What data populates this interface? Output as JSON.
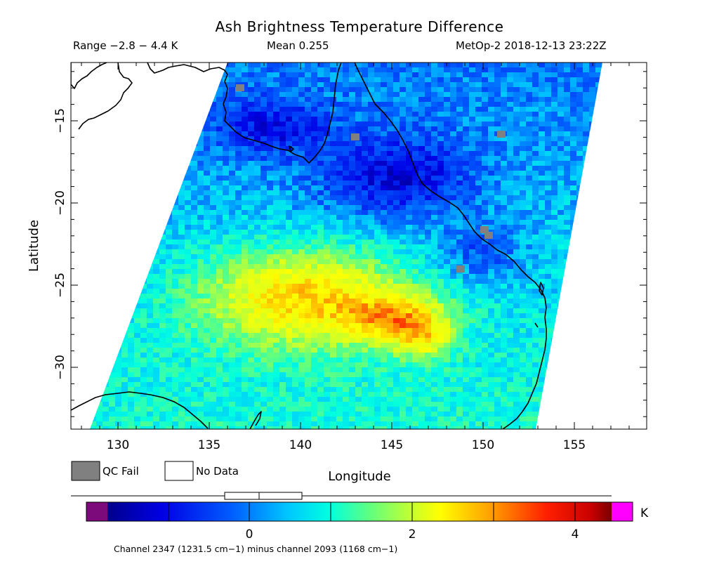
{
  "title": "Ash Brightness Temperature Difference",
  "header": {
    "range": "Range −2.8 − 4.4 K",
    "mean": "Mean 0.255",
    "satellite_time": "MetOp-2 2018-12-13 23:22Z"
  },
  "axes": {
    "xlabel": "Longitude",
    "ylabel": "Latitude",
    "x_ticks": [
      "130",
      "135",
      "140",
      "145",
      "150",
      "155"
    ],
    "y_ticks": [
      "−15",
      "−20",
      "−25",
      "−30"
    ],
    "lon_range": [
      127.5,
      158.5
    ],
    "lat_range": [
      -11.5,
      -33.6
    ]
  },
  "legend": {
    "qc_fail": "QC Fail",
    "no_data": "No Data",
    "qc_fail_color": "#808080",
    "no_data_color": "#ffffff"
  },
  "colorbar": {
    "ticks": [
      "0",
      "2",
      "4"
    ],
    "unit": "K",
    "low_out_color": "#7d0a7a",
    "high_out_color": "#ff00ff",
    "range": [
      -1.7,
      4.3
    ]
  },
  "footnote": "Channel 2347 (1231.5 cm−1) minus channel 2093 (1168 cm−1)"
}
